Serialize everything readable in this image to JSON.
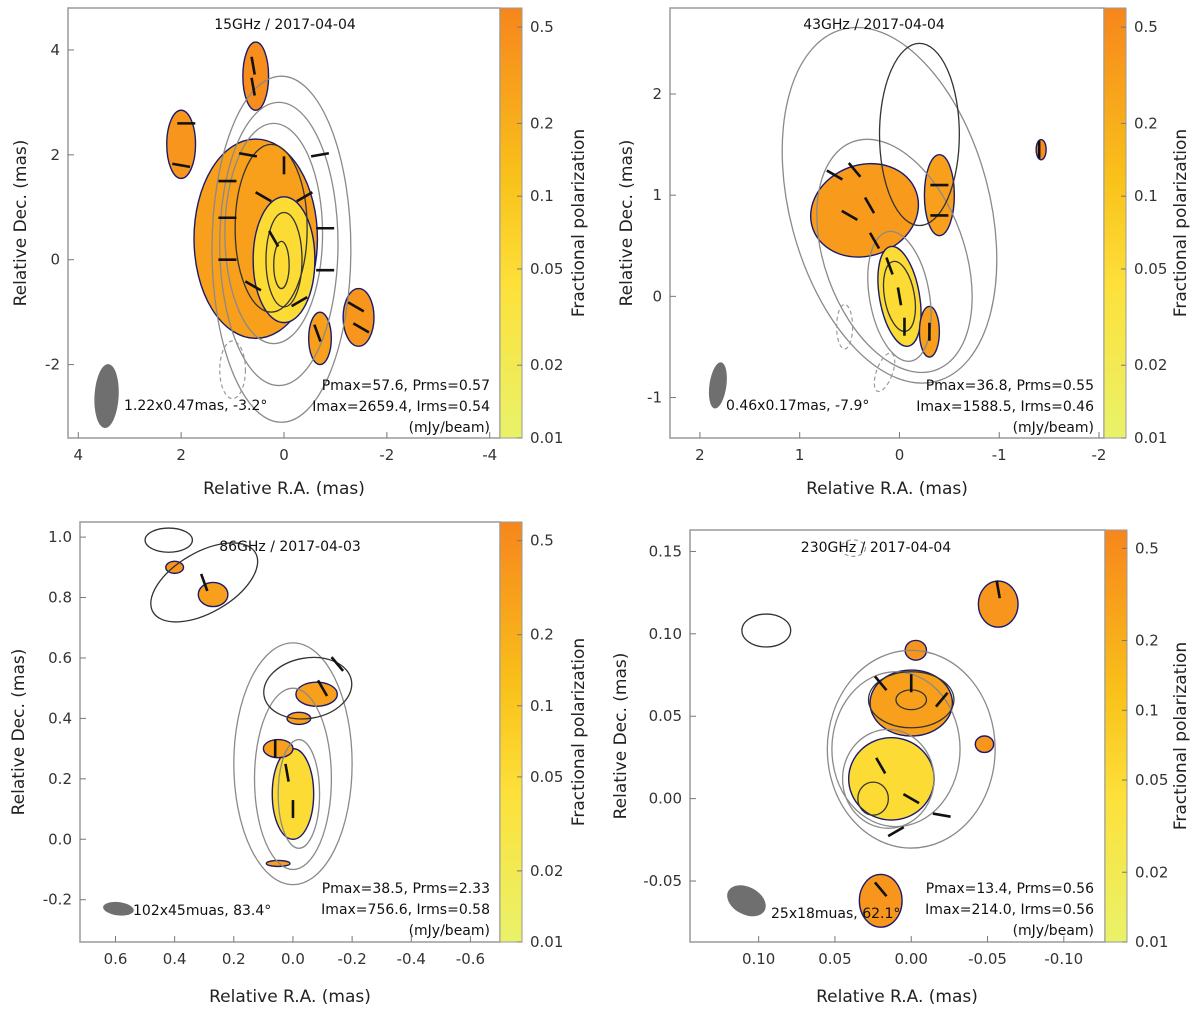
{
  "colors": {
    "frame": "#9a9a9a",
    "contour": "#8a8a8a",
    "neg_contour": "#9a9a9a",
    "poln_contour": "#1b1b6e",
    "evpa": "#111111",
    "beam": "#6f6f6f",
    "cb_top": "#f7861c",
    "cb_mid": "#f9c21a",
    "cb_bottom": "#e9f26a"
  },
  "chart_data": [
    {
      "type": "polarization_map",
      "title": "15GHz / 2017-04-04",
      "xlabel": "Relative R.A. (mas)",
      "ylabel": "Relative Dec. (mas)",
      "xlim": [
        4.2,
        -4.2
      ],
      "ylim": [
        -3.4,
        4.8
      ],
      "xticks": [
        4,
        2,
        0,
        -2,
        -4
      ],
      "xtick_labels": [
        "4",
        "2",
        "0",
        "-2",
        "-4"
      ],
      "yticks": [
        -2,
        0,
        2,
        4
      ],
      "ytick_labels": [
        "-2",
        "0",
        "2",
        "4"
      ],
      "beam_label": "1.22x0.47mas, -3.2°",
      "beam": {
        "x": 3.45,
        "y": -2.6,
        "major": 1.22,
        "minor": 0.47,
        "pa": -3.2
      },
      "stats": [
        "Pmax=57.6, Prms=0.57",
        "Imax=2659.4, Irms=0.54",
        "(mJy/beam)"
      ],
      "colorbar": {
        "label": "Fractional polarization",
        "ticks": [
          "0.5",
          "0.2",
          "0.1",
          "0.05",
          "0.02",
          "0.01"
        ]
      },
      "stokes_i_contours": [
        {
          "x": 0.05,
          "y": 0.2,
          "rx": 1.35,
          "ry": 3.3,
          "rot": 0
        },
        {
          "x": 0.1,
          "y": 0.3,
          "rx": 1.15,
          "ry": 2.7,
          "rot": 0
        },
        {
          "x": 0.2,
          "y": 0.5,
          "rx": 0.95,
          "ry": 2.1,
          "rot": 0
        },
        {
          "x": 0.25,
          "y": 0.6,
          "rx": 0.7,
          "ry": 1.6,
          "rot": 0
        },
        {
          "x": 0.0,
          "y": 0.0,
          "rx": 0.35,
          "ry": 0.9,
          "rot": 0
        },
        {
          "x": 0.05,
          "y": -0.1,
          "rx": 0.15,
          "ry": 0.45,
          "rot": 0
        }
      ],
      "negative_contours": [
        {
          "x": 1.0,
          "y": -2.1,
          "rx": 0.25,
          "ry": 0.55,
          "rot": 0
        }
      ],
      "poln_regions": [
        {
          "x": 0.55,
          "y": 0.4,
          "rx": 1.2,
          "ry": 1.9,
          "rot": 0,
          "fill": 0.3
        },
        {
          "x": 0.0,
          "y": 0.0,
          "rx": 0.6,
          "ry": 1.2,
          "rot": 0,
          "fill": 0.05
        },
        {
          "x": 0.55,
          "y": 3.5,
          "rx": 0.25,
          "ry": 0.65,
          "rot": 0,
          "fill": 0.5
        },
        {
          "x": 2.0,
          "y": 2.2,
          "rx": 0.28,
          "ry": 0.65,
          "rot": 0,
          "fill": 0.4
        },
        {
          "x": -0.7,
          "y": -1.5,
          "rx": 0.22,
          "ry": 0.5,
          "rot": 0,
          "fill": 0.3
        },
        {
          "x": -1.45,
          "y": -1.1,
          "rx": 0.3,
          "ry": 0.55,
          "rot": 0,
          "fill": 0.4
        }
      ],
      "evpa_sticks": [
        [
          1.1,
          1.5,
          90
        ],
        [
          1.1,
          0.8,
          90
        ],
        [
          1.1,
          0.0,
          90
        ],
        [
          0.7,
          2.0,
          80
        ],
        [
          0.4,
          1.2,
          60
        ],
        [
          0.0,
          1.8,
          0
        ],
        [
          -0.4,
          1.2,
          120
        ],
        [
          -0.7,
          2.0,
          100
        ],
        [
          -0.8,
          0.6,
          90
        ],
        [
          -0.8,
          -0.2,
          90
        ],
        [
          0.6,
          -0.5,
          60
        ],
        [
          -0.3,
          -0.8,
          120
        ],
        [
          0.2,
          0.4,
          30
        ],
        [
          1.9,
          2.6,
          90
        ],
        [
          2.0,
          1.8,
          80
        ],
        [
          0.6,
          3.7,
          10
        ],
        [
          0.6,
          3.3,
          10
        ],
        [
          -0.65,
          -1.4,
          20
        ],
        [
          -1.4,
          -0.9,
          60
        ],
        [
          -1.5,
          -1.3,
          60
        ]
      ]
    },
    {
      "type": "polarization_map",
      "title": "43GHz / 2017-04-04",
      "xlabel": "Relative R.A. (mas)",
      "ylabel": "Relative Dec. (mas)",
      "xlim": [
        2.3,
        -2.05
      ],
      "ylim": [
        -1.4,
        2.85
      ],
      "xticks": [
        2,
        1,
        0,
        -1,
        -2
      ],
      "xtick_labels": [
        "2",
        "1",
        "0",
        "-1",
        "-2"
      ],
      "yticks": [
        -1,
        0,
        1,
        2
      ],
      "ytick_labels": [
        "-1",
        "0",
        "1",
        "2"
      ],
      "beam_label": "0.46x0.17mas, -7.9°",
      "beam": {
        "x": 1.82,
        "y": -0.88,
        "major": 0.46,
        "minor": 0.17,
        "pa": -7.9
      },
      "stats": [
        "Pmax=36.8, Prms=0.55",
        "Imax=1588.5, Irms=0.46",
        "(mJy/beam)"
      ],
      "colorbar": {
        "label": "Fractional polarization",
        "ticks": [
          "0.5",
          "0.2",
          "0.1",
          "0.05",
          "0.02",
          "0.01"
        ]
      },
      "stokes_i_contours": [
        {
          "x": 0.1,
          "y": 0.9,
          "rx": 1.0,
          "ry": 1.8,
          "rot": -15
        },
        {
          "x": 0.05,
          "y": 0.4,
          "rx": 0.7,
          "ry": 1.2,
          "rot": -20
        },
        {
          "x": 0.0,
          "y": 0.0,
          "rx": 0.3,
          "ry": 0.65,
          "rot": -10
        },
        {
          "x": 0.0,
          "y": 0.0,
          "rx": 0.15,
          "ry": 0.35,
          "rot": -10
        },
        {
          "x": -0.2,
          "y": 1.6,
          "rx": 0.4,
          "ry": 0.9,
          "rot": 0
        }
      ],
      "negative_contours": [
        {
          "x": 0.55,
          "y": -0.3,
          "rx": 0.08,
          "ry": 0.22,
          "rot": 0
        },
        {
          "x": 0.15,
          "y": -0.75,
          "rx": 0.08,
          "ry": 0.2,
          "rot": 20
        }
      ],
      "poln_regions": [
        {
          "x": 0.35,
          "y": 0.85,
          "rx": 0.55,
          "ry": 0.45,
          "rot": -20,
          "fill": 0.35
        },
        {
          "x": 0.0,
          "y": 0.0,
          "rx": 0.2,
          "ry": 0.5,
          "rot": -10,
          "fill": 0.05
        },
        {
          "x": -0.4,
          "y": 1.0,
          "rx": 0.15,
          "ry": 0.4,
          "rot": 0,
          "fill": 0.3
        },
        {
          "x": -1.42,
          "y": 1.45,
          "rx": 0.05,
          "ry": 0.1,
          "rot": 0,
          "fill": 0.5
        },
        {
          "x": -0.3,
          "y": -0.35,
          "rx": 0.1,
          "ry": 0.25,
          "rot": 0,
          "fill": 0.3
        }
      ],
      "evpa_sticks": [
        [
          0.65,
          1.2,
          60
        ],
        [
          0.45,
          1.25,
          40
        ],
        [
          0.3,
          0.9,
          30
        ],
        [
          0.5,
          0.8,
          60
        ],
        [
          0.25,
          0.55,
          30
        ],
        [
          0.1,
          0.3,
          20
        ],
        [
          0.0,
          0.0,
          10
        ],
        [
          -0.05,
          -0.3,
          0
        ],
        [
          -0.4,
          1.1,
          90
        ],
        [
          -0.4,
          0.8,
          90
        ],
        [
          -1.4,
          1.45,
          0
        ],
        [
          -0.3,
          -0.35,
          0
        ]
      ]
    },
    {
      "type": "polarization_map",
      "title": "86GHz / 2017-04-03",
      "xlabel": "Relative R.A. (mas)",
      "ylabel": "Relative Dec. (mas)",
      "xlim": [
        0.72,
        -0.7
      ],
      "ylim": [
        -0.34,
        1.05
      ],
      "xticks": [
        0.6,
        0.4,
        0.2,
        0.0,
        -0.2,
        -0.4,
        -0.6
      ],
      "xtick_labels": [
        "0.6",
        "0.4",
        "0.2",
        "0.0",
        "-0.2",
        "-0.4",
        "-0.6"
      ],
      "yticks": [
        -0.2,
        0.0,
        0.2,
        0.4,
        0.6,
        0.8,
        1.0
      ],
      "ytick_labels": [
        "-0.2",
        "0.0",
        "0.2",
        "0.4",
        "0.6",
        "0.8",
        "1.0"
      ],
      "beam_label": "102x45muas, 83.4°",
      "beam": {
        "x": 0.59,
        "y": -0.23,
        "major": 0.102,
        "minor": 0.045,
        "pa": 83.4
      },
      "stats": [
        "Pmax=38.5, Prms=2.33",
        "Imax=756.6, Irms=0.58",
        "(mJy/beam)"
      ],
      "colorbar": {
        "label": "Fractional polarization",
        "ticks": [
          "0.5",
          "0.2",
          "0.1",
          "0.05",
          "0.02",
          "0.01"
        ]
      },
      "stokes_i_contours": [
        {
          "x": 0.0,
          "y": 0.25,
          "rx": 0.2,
          "ry": 0.4,
          "rot": 0
        },
        {
          "x": 0.0,
          "y": 0.2,
          "rx": 0.13,
          "ry": 0.3,
          "rot": 0
        },
        {
          "x": -0.02,
          "y": 0.15,
          "rx": 0.07,
          "ry": 0.18,
          "rot": 0
        },
        {
          "x": -0.05,
          "y": 0.5,
          "rx": 0.15,
          "ry": 0.1,
          "rot": -10
        },
        {
          "x": 0.3,
          "y": 0.85,
          "rx": 0.2,
          "ry": 0.1,
          "rot": -30
        },
        {
          "x": 0.42,
          "y": 0.99,
          "rx": 0.08,
          "ry": 0.04,
          "rot": 0
        }
      ],
      "negative_contours": [],
      "poln_regions": [
        {
          "x": 0.0,
          "y": 0.15,
          "rx": 0.07,
          "ry": 0.15,
          "rot": 0,
          "fill": 0.05
        },
        {
          "x": 0.05,
          "y": 0.3,
          "rx": 0.05,
          "ry": 0.03,
          "rot": 0,
          "fill": 0.3
        },
        {
          "x": -0.08,
          "y": 0.48,
          "rx": 0.07,
          "ry": 0.04,
          "rot": 0,
          "fill": 0.3
        },
        {
          "x": -0.02,
          "y": 0.4,
          "rx": 0.04,
          "ry": 0.02,
          "rot": 0,
          "fill": 0.3
        },
        {
          "x": 0.27,
          "y": 0.81,
          "rx": 0.05,
          "ry": 0.04,
          "rot": 0,
          "fill": 0.3
        },
        {
          "x": 0.4,
          "y": 0.9,
          "rx": 0.03,
          "ry": 0.02,
          "rot": 0,
          "fill": 0.4
        },
        {
          "x": 0.05,
          "y": -0.08,
          "rx": 0.04,
          "ry": 0.01,
          "rot": 0,
          "fill": 0.3
        }
      ],
      "evpa_sticks": [
        [
          0.0,
          0.1,
          0
        ],
        [
          0.02,
          0.22,
          10
        ],
        [
          -0.1,
          0.5,
          30
        ],
        [
          0.3,
          0.85,
          20
        ],
        [
          0.06,
          0.3,
          0
        ],
        [
          -0.15,
          0.58,
          40
        ]
      ]
    },
    {
      "type": "polarization_map",
      "title": "230GHz / 2017-04-04",
      "xlabel": "Relative R.A. (mas)",
      "ylabel": "Relative Dec. (mas)",
      "xlim": [
        0.145,
        -0.127
      ],
      "ylim": [
        -0.087,
        0.163
      ],
      "xticks": [
        0.1,
        0.05,
        0.0,
        -0.05,
        -0.1
      ],
      "xtick_labels": [
        "0.10",
        "0.05",
        "0.00",
        "-0.05",
        "-0.10"
      ],
      "yticks": [
        -0.05,
        0.0,
        0.05,
        0.1,
        0.15
      ],
      "ytick_labels": [
        "-0.05",
        "0.00",
        "0.05",
        "0.10",
        "0.15"
      ],
      "beam_label": "25x18muas, 62.1°",
      "beam": {
        "x": 0.108,
        "y": -0.062,
        "major": 0.025,
        "minor": 0.018,
        "pa": 62.1
      },
      "stats": [
        "Pmax=13.4, Prms=0.56",
        "Imax=214.0, Irms=0.56",
        "(mJy/beam)"
      ],
      "colorbar": {
        "label": "Fractional polarization",
        "ticks": [
          "0.5",
          "0.2",
          "0.1",
          "0.05",
          "0.02",
          "0.01"
        ]
      },
      "stokes_i_contours": [
        {
          "x": 0.0,
          "y": 0.03,
          "rx": 0.055,
          "ry": 0.06,
          "rot": 0
        },
        {
          "x": 0.01,
          "y": 0.03,
          "rx": 0.042,
          "ry": 0.047,
          "rot": 0
        },
        {
          "x": 0.015,
          "y": 0.012,
          "rx": 0.03,
          "ry": 0.03,
          "rot": 0
        },
        {
          "x": 0.0,
          "y": 0.06,
          "rx": 0.028,
          "ry": 0.017,
          "rot": 0
        },
        {
          "x": 0.0,
          "y": 0.06,
          "rx": 0.01,
          "ry": 0.006,
          "rot": 0
        },
        {
          "x": 0.025,
          "y": 0.0,
          "rx": 0.01,
          "ry": 0.01,
          "rot": 0
        },
        {
          "x": 0.095,
          "y": 0.102,
          "rx": 0.016,
          "ry": 0.01,
          "rot": 0
        }
      ],
      "negative_contours": [
        {
          "x": 0.038,
          "y": 0.152,
          "rx": 0.008,
          "ry": 0.005,
          "rot": 0
        }
      ],
      "poln_regions": [
        {
          "x": 0.0,
          "y": 0.058,
          "rx": 0.027,
          "ry": 0.02,
          "rot": 0,
          "fill": 0.3
        },
        {
          "x": 0.013,
          "y": 0.012,
          "rx": 0.028,
          "ry": 0.025,
          "rot": 0,
          "fill": 0.05
        },
        {
          "x": -0.003,
          "y": 0.09,
          "rx": 0.007,
          "ry": 0.006,
          "rot": 0,
          "fill": 0.4
        },
        {
          "x": -0.048,
          "y": 0.033,
          "rx": 0.006,
          "ry": 0.005,
          "rot": 0,
          "fill": 0.4
        },
        {
          "x": -0.057,
          "y": 0.118,
          "rx": 0.013,
          "ry": 0.014,
          "rot": 0,
          "fill": 0.4
        },
        {
          "x": 0.02,
          "y": -0.062,
          "rx": 0.014,
          "ry": 0.016,
          "rot": 0,
          "fill": 0.4
        }
      ],
      "evpa_sticks": [
        [
          0.02,
          0.07,
          40
        ],
        [
          0.0,
          0.07,
          0
        ],
        [
          -0.02,
          0.06,
          -40
        ],
        [
          0.02,
          0.02,
          30
        ],
        [
          0.0,
          0.0,
          60
        ],
        [
          -0.02,
          -0.01,
          80
        ],
        [
          0.01,
          -0.02,
          120
        ],
        [
          -0.057,
          0.127,
          10
        ],
        [
          0.02,
          -0.055,
          40
        ]
      ]
    }
  ]
}
